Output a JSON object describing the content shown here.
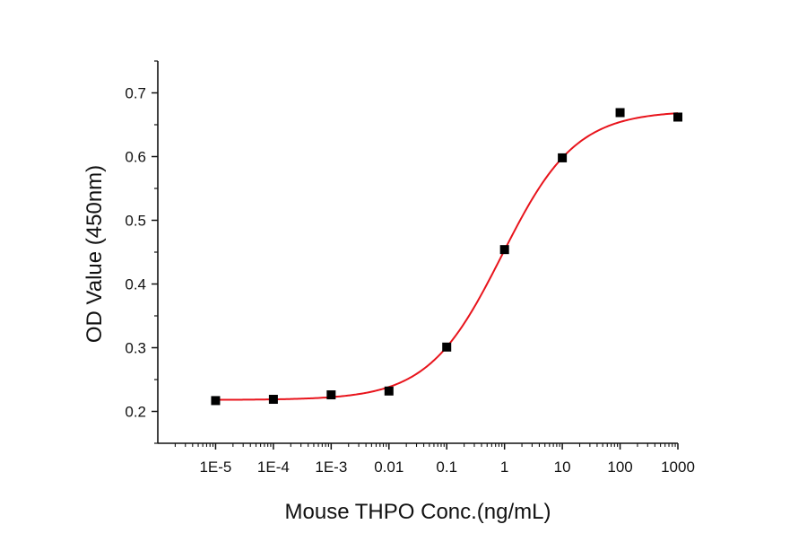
{
  "chart_data": {
    "type": "scatter",
    "title": "",
    "xlabel": "Mouse THPO Conc.(ng/mL)",
    "ylabel": "OD Value (450nm)",
    "x_scale": "log",
    "xlim": [
      1e-06,
      1000
    ],
    "ylim": [
      0.15,
      0.75
    ],
    "x_ticks": [
      1e-05,
      0.0001,
      0.001,
      0.01,
      0.1,
      1,
      10,
      100,
      1000
    ],
    "x_tick_labels": [
      "1E-5",
      "1E-4",
      "1E-3",
      "0.01",
      "0.1",
      "1",
      "10",
      "100",
      "1000"
    ],
    "y_ticks": [
      0.2,
      0.3,
      0.4,
      0.5,
      0.6,
      0.7
    ],
    "y_tick_labels": [
      "0.2",
      "0.3",
      "0.4",
      "0.5",
      "0.6",
      "0.7"
    ],
    "grid": false,
    "series": [
      {
        "marker": "square",
        "color": "#000000",
        "x": [
          1e-05,
          0.0001,
          0.001,
          0.01,
          0.1,
          1,
          10,
          100,
          1000
        ],
        "y": [
          0.217,
          0.219,
          0.226,
          0.232,
          0.301,
          0.454,
          0.598,
          0.669,
          0.662
        ]
      }
    ],
    "fit_curve": {
      "type": "four-parameter logistic",
      "color": "#e8141c"
    }
  }
}
